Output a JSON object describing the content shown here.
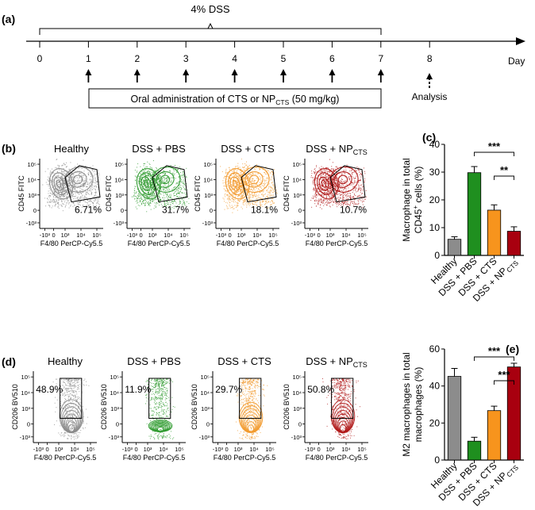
{
  "figure": {
    "panel_a": {
      "label": "(a)",
      "dss_label": "4% DSS",
      "day_ticks": [
        "0",
        "1",
        "2",
        "3",
        "4",
        "5",
        "6",
        "7",
        "8"
      ],
      "axis_label": "Day",
      "admin_box_prefix": "Oral administration of CTS or NP",
      "admin_box_sub": "CTS",
      "admin_box_suffix": " (50 mg/kg)",
      "analysis_label": "Analysis"
    },
    "panel_b": {
      "label": "(b)",
      "y_axis_label": "CD45 FITC",
      "x_axis_label": "F4/80 PerCP-Cy5.5",
      "y_ticks": [
        "10⁵",
        "10⁴",
        "10³",
        "0",
        "-10³"
      ],
      "x_ticks": [
        "-10³",
        "0",
        "10³",
        "10⁴",
        "10⁵"
      ],
      "plots": [
        {
          "title": "Healthy",
          "title_sub": "",
          "percent": "6.71%",
          "color": "#8a8a8a"
        },
        {
          "title": "DSS + PBS",
          "title_sub": "",
          "percent": "31.7%",
          "color": "#2e9a2e"
        },
        {
          "title": "DSS + CTS",
          "title_sub": "",
          "percent": "18.1%",
          "color": "#f29a2e"
        },
        {
          "title": "DSS + NP",
          "title_sub": "CTS",
          "percent": "10.7%",
          "color": "#b01818"
        }
      ]
    },
    "panel_d": {
      "label": "(d)",
      "y_axis_label": "CD206 BV510",
      "x_axis_label": "F4/80 PerCP-Cy5.5",
      "y_ticks": [
        "10⁵",
        "10⁴",
        "10³",
        "0",
        "-10³"
      ],
      "x_ticks": [
        "-10³",
        "0",
        "10³",
        "10⁴",
        "10⁵"
      ],
      "plots": [
        {
          "title": "Healthy",
          "title_sub": "",
          "percent": "48.9%",
          "color": "#8a8a8a"
        },
        {
          "title": "DSS + PBS",
          "title_sub": "",
          "percent": "11.9%",
          "color": "#2e9a2e"
        },
        {
          "title": "DSS + CTS",
          "title_sub": "",
          "percent": "29.7%",
          "color": "#f29a2e"
        },
        {
          "title": "DSS + NP",
          "title_sub": "CTS",
          "percent": "50.8%",
          "color": "#b01818"
        }
      ]
    }
  },
  "chart_data": [
    {
      "type": "bar",
      "panel": "(c)",
      "title": "",
      "ylabel_line1": "Macrophage in total",
      "ylabel_line2_prefix": "CD45",
      "ylabel_line2_sup": "+",
      "ylabel_line2_suffix": " cells (%)",
      "xlabel": "",
      "categories": [
        "Healthy",
        "DSS + PBS",
        "DSS + CTS",
        "DSS + NP"
      ],
      "category_subs": [
        "",
        "",
        "",
        "CTS"
      ],
      "values": [
        5.8,
        29.8,
        16.3,
        8.7
      ],
      "errors": [
        0.9,
        2.2,
        1.9,
        1.6
      ],
      "colors": [
        "#8c8c8c",
        "#1f8f1f",
        "#f7941d",
        "#a8000f"
      ],
      "ylim": [
        0,
        40
      ],
      "yticks": [
        0,
        10,
        20,
        30,
        40
      ],
      "ytick_labels": [
        "0",
        "10",
        "20",
        "30",
        "40"
      ],
      "significance": [
        {
          "from": 1,
          "to": 3,
          "label": "***"
        },
        {
          "from": 2,
          "to": 3,
          "label": "**"
        }
      ]
    },
    {
      "type": "bar",
      "panel": "(e)",
      "title": "",
      "ylabel_line1": "M2 macrophages in total",
      "ylabel_line2_prefix": "macrophages (%)",
      "ylabel_line2_sup": "",
      "ylabel_line2_suffix": "",
      "xlabel": "",
      "categories": [
        "Healthy",
        "DSS + PBS",
        "DSS + CTS",
        "DSS + NP"
      ],
      "category_subs": [
        "",
        "",
        "",
        "CTS"
      ],
      "values": [
        45.2,
        10.2,
        26.7,
        50.3
      ],
      "errors": [
        4.3,
        2.1,
        2.4,
        2.0
      ],
      "colors": [
        "#8c8c8c",
        "#1f8f1f",
        "#f7941d",
        "#a8000f"
      ],
      "ylim": [
        0,
        60
      ],
      "yticks": [
        0,
        20,
        40,
        60
      ],
      "ytick_labels": [
        "0",
        "20",
        "40",
        "60"
      ],
      "significance": [
        {
          "from": 1,
          "to": 3,
          "label": "***"
        },
        {
          "from": 2,
          "to": 3,
          "label": "***"
        }
      ]
    }
  ]
}
